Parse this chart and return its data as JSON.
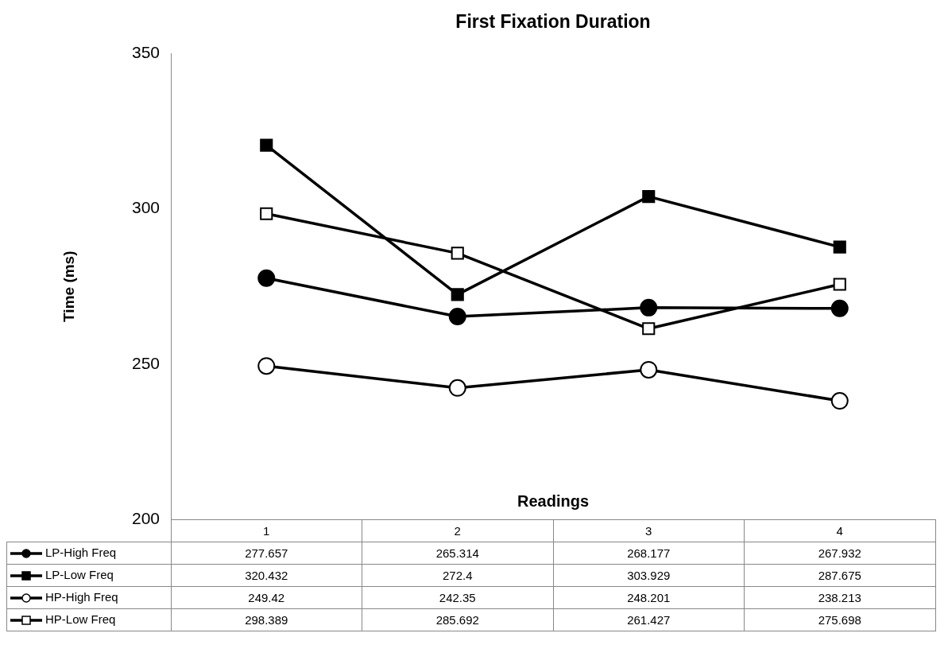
{
  "chart_data": {
    "type": "line",
    "title": "First Fixation Duration",
    "xlabel": "Readings",
    "ylabel": "Time (ms)",
    "categories": [
      "1",
      "2",
      "3",
      "4"
    ],
    "series": [
      {
        "name": "LP-High Freq",
        "color": "#000000",
        "marker": "circle",
        "values": [
          277.657,
          265.314,
          268.177,
          267.932
        ]
      },
      {
        "name": "LP-Low Freq",
        "color": "#000000",
        "marker": "square",
        "values": [
          320.432,
          272.4,
          303.929,
          287.675
        ]
      },
      {
        "name": "HP-High Freq",
        "color": "#000000",
        "marker": "circle",
        "colors": [
          "#ffffff",
          "#ffffff",
          "#ffffff",
          "#ffffff"
        ],
        "values": [
          249.42,
          242.35,
          248.201,
          238.213
        ]
      },
      {
        "name": "HP-Low Freq",
        "color": "#000000",
        "marker": "square",
        "colors": [
          "#ffffff",
          "#ffffff",
          "#ffffff",
          "#ffffff"
        ],
        "values": [
          298.389,
          285.692,
          261.427,
          275.698
        ]
      }
    ],
    "ylim": [
      200,
      350
    ],
    "yticks": [
      200,
      250,
      300,
      350
    ],
    "grid": false,
    "legend": "bottom left",
    "data_labels": true,
    "line_style": "solid"
  }
}
